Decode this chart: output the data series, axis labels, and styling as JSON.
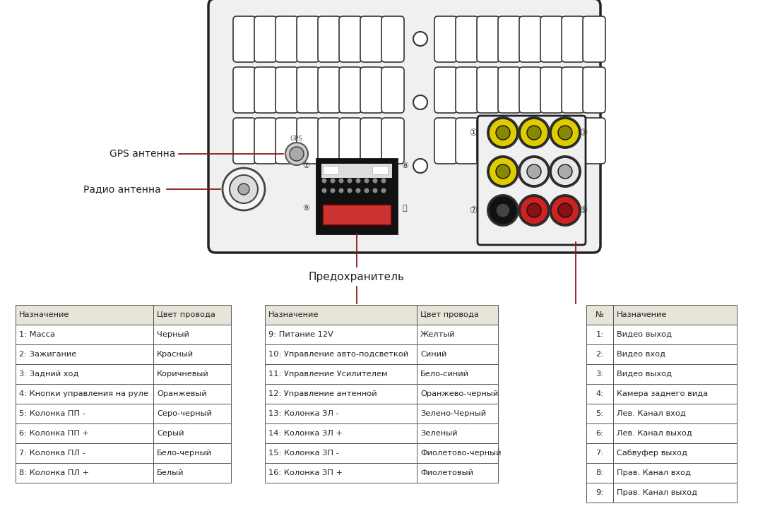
{
  "bg_color": "#ffffff",
  "table1": {
    "header": [
      "Назначение",
      "Цвет провода"
    ],
    "rows": [
      [
        "1: Масса",
        "Черный"
      ],
      [
        "2: Зажигание",
        "Красный"
      ],
      [
        "3: Задний ход",
        "Коричневый"
      ],
      [
        "4: Кнопки управления на руле",
        "Оранжевый"
      ],
      [
        "5: Колонка ПП -",
        "Серо-черный"
      ],
      [
        "6: Колонка ПП +",
        "Серый"
      ],
      [
        "7: Колонка ПЛ -",
        "Бело-черный"
      ],
      [
        "8: Колонка ПЛ +",
        "Белый"
      ]
    ]
  },
  "table2": {
    "header": [
      "Назначение",
      "Цвет провода"
    ],
    "rows": [
      [
        "9: Питание 12V",
        "Желтый"
      ],
      [
        "10: Управление авто-подсветкой",
        "Синий"
      ],
      [
        "11: Управление Усилителем",
        "Бело-синий"
      ],
      [
        "12: Управление антенной",
        "Оранжево-черный"
      ],
      [
        "13: Колонка ЗЛ -",
        "Зелено-Черный"
      ],
      [
        "14: Колонка ЗЛ +",
        "Зеленый"
      ],
      [
        "15: Колонка ЗП -",
        "Фиолетово-черный"
      ],
      [
        "16: Колонка ЗП +",
        "Фиолетовый"
      ]
    ]
  },
  "table3": {
    "header": [
      "№",
      "Назначение"
    ],
    "rows": [
      [
        "1:",
        "Видео выход"
      ],
      [
        "2:",
        "Видео вход"
      ],
      [
        "3:",
        "Видео выход"
      ],
      [
        "4:",
        "Камера заднего вида"
      ],
      [
        "5:",
        "Лев. Канал вход"
      ],
      [
        "6:",
        "Лев. Канал выход"
      ],
      [
        "7:",
        "Сабвуфер выход"
      ],
      [
        "8:",
        "Прав. Канал вход"
      ],
      [
        "9:",
        "Прав. Канал выход"
      ]
    ]
  },
  "label_gps": "GPS антенна",
  "label_radio": "Радио антенна",
  "label_fuse": "Предохранитель",
  "header_bg": "#e8e4d8",
  "line_color": "#8B1A1A",
  "table_border": "#555555",
  "text_color": "#222222",
  "device_bg": "#f0f0f0",
  "device_border": "#222222",
  "slot_bg": "#ffffff",
  "slot_border": "#333333"
}
